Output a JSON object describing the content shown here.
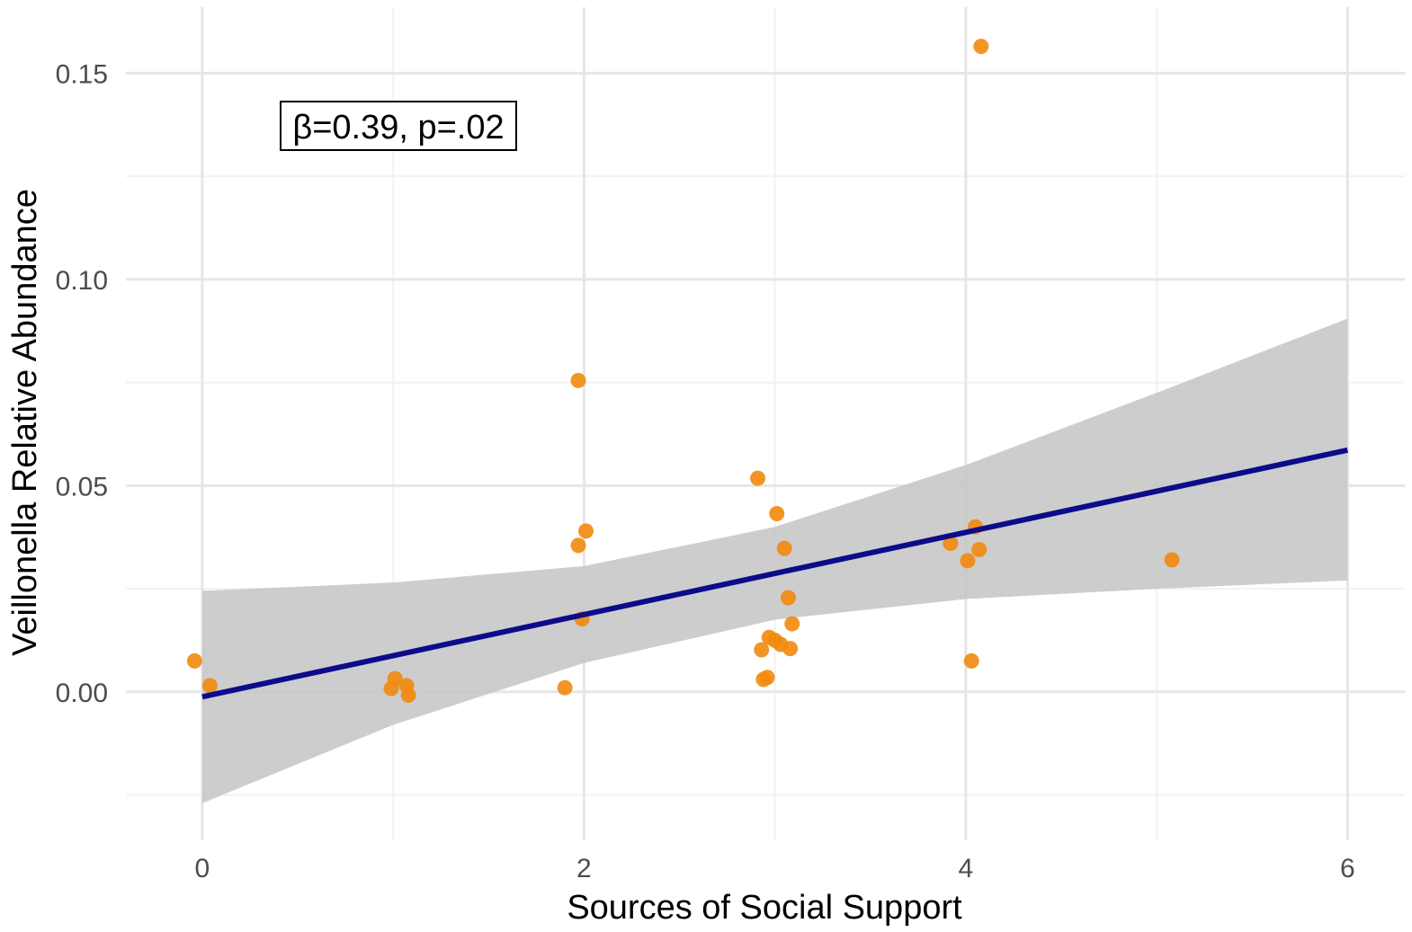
{
  "chart_data": {
    "type": "scatter",
    "xlabel": "Sources of Social Support",
    "ylabel": "Veillonella Relative Abundance",
    "xlim": [
      -0.4,
      6.3
    ],
    "ylim": [
      -0.036,
      0.166
    ],
    "x_ticks": [
      0,
      2,
      4,
      6
    ],
    "x_tick_labels": [
      "0",
      "2",
      "4",
      "6"
    ],
    "y_ticks": [
      0.0,
      0.05,
      0.1,
      0.15
    ],
    "y_tick_labels": [
      "0.00",
      "0.05",
      "0.10",
      "0.15"
    ],
    "x_minor_ticks": [
      1,
      3,
      5
    ],
    "y_minor_ticks": [
      -0.025,
      0.025,
      0.075,
      0.125
    ],
    "grid": true,
    "annotation": "β=0.39, p=.02",
    "point_color": "#f28a0c",
    "line_color": "#0c0c8a",
    "band_color": "#c4c4c4",
    "regression": {
      "intercept": -0.0012,
      "slope": 0.00997,
      "x_range": [
        0,
        6
      ]
    },
    "confidence_band": {
      "x": [
        0,
        1,
        2,
        3,
        4,
        5,
        6
      ],
      "upper": [
        0.0245,
        0.0265,
        0.0305,
        0.04,
        0.055,
        0.0725,
        0.0905
      ],
      "lower": [
        -0.027,
        -0.008,
        0.007,
        0.0175,
        0.0225,
        0.025,
        0.027
      ]
    },
    "points": [
      {
        "x": -0.04,
        "y": 0.0075
      },
      {
        "x": 0.04,
        "y": 0.0015
      },
      {
        "x": 0.99,
        "y": 0.0008
      },
      {
        "x": 1.01,
        "y": 0.0032
      },
      {
        "x": 1.07,
        "y": 0.0015
      },
      {
        "x": 1.08,
        "y": -0.0008
      },
      {
        "x": 1.9,
        "y": 0.001
      },
      {
        "x": 1.97,
        "y": 0.0755
      },
      {
        "x": 1.97,
        "y": 0.0355
      },
      {
        "x": 1.99,
        "y": 0.0177
      },
      {
        "x": 2.01,
        "y": 0.039
      },
      {
        "x": 2.91,
        "y": 0.0518
      },
      {
        "x": 2.93,
        "y": 0.0102
      },
      {
        "x": 2.94,
        "y": 0.003
      },
      {
        "x": 2.96,
        "y": 0.0035
      },
      {
        "x": 2.97,
        "y": 0.0132
      },
      {
        "x": 3.0,
        "y": 0.0125
      },
      {
        "x": 3.01,
        "y": 0.0432
      },
      {
        "x": 3.03,
        "y": 0.0115
      },
      {
        "x": 3.05,
        "y": 0.0348
      },
      {
        "x": 3.07,
        "y": 0.0228
      },
      {
        "x": 3.08,
        "y": 0.0105
      },
      {
        "x": 3.09,
        "y": 0.0165
      },
      {
        "x": 3.92,
        "y": 0.036
      },
      {
        "x": 4.01,
        "y": 0.0318
      },
      {
        "x": 4.03,
        "y": 0.0075
      },
      {
        "x": 4.05,
        "y": 0.04
      },
      {
        "x": 4.07,
        "y": 0.0345
      },
      {
        "x": 4.08,
        "y": 0.1565
      },
      {
        "x": 5.08,
        "y": 0.032
      }
    ]
  }
}
